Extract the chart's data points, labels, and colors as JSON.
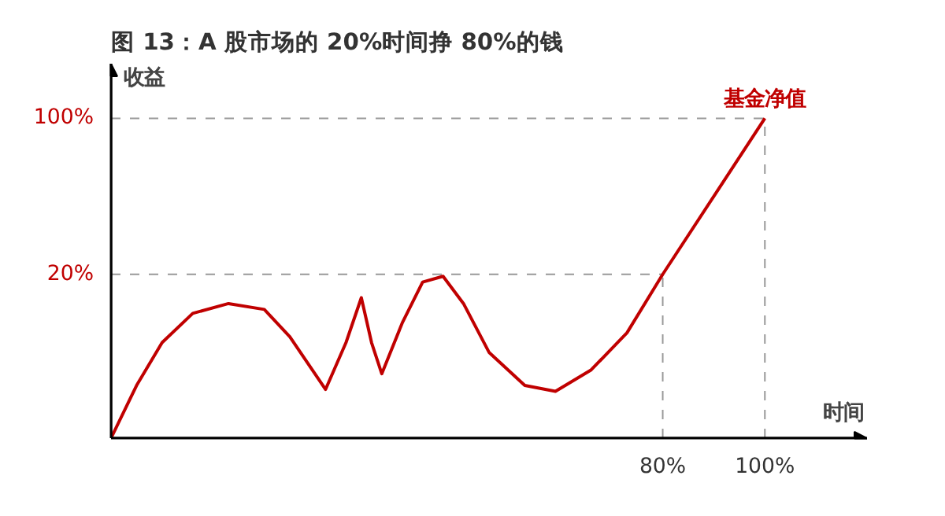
{
  "chart_data": {
    "type": "line",
    "title": "图 13：A 股市场的 20%时间挣 80%的钱",
    "xlabel": "时间",
    "ylabel": "收益",
    "x": [
      -28,
      -23,
      -18,
      -12,
      -5,
      2,
      7,
      14,
      18,
      21,
      23,
      25,
      29,
      33,
      37,
      41,
      46,
      53,
      59,
      66,
      73,
      80,
      90,
      100
    ],
    "series": [
      {
        "color": "#c00000",
        "values": [
          -64,
          -37,
          -15,
          0,
          5,
          2,
          -12,
          -39,
          -15,
          8,
          -15,
          -31,
          -5,
          16,
          19,
          5,
          -20,
          -37,
          -40,
          -29,
          -10,
          20,
          60,
          100
        ]
      }
    ],
    "xlim": [
      -28,
      120
    ],
    "ylim": [
      -64,
      128
    ],
    "xticks": [
      {
        "value": 80,
        "label": "80%"
      },
      {
        "value": 100,
        "label": "100%"
      }
    ],
    "yticks": [
      {
        "value": 20,
        "label": "20%"
      },
      {
        "value": 100,
        "label": "100%"
      }
    ],
    "ref_lines": [
      {
        "axis": "y",
        "value": 20,
        "color": "#999999",
        "line_style": "dashed"
      },
      {
        "axis": "y",
        "value": 100,
        "color": "#999999",
        "line_style": "dashed"
      },
      {
        "axis": "x",
        "value": 80,
        "color": "#999999",
        "line_style": "dashed"
      },
      {
        "axis": "x",
        "value": 100,
        "color": "#999999",
        "line_style": "dashed"
      }
    ],
    "annotations": [
      {
        "text": "基金净值",
        "x": 100,
        "y": 100
      }
    ],
    "grid": false,
    "marker": "none",
    "line_style": "solid"
  }
}
